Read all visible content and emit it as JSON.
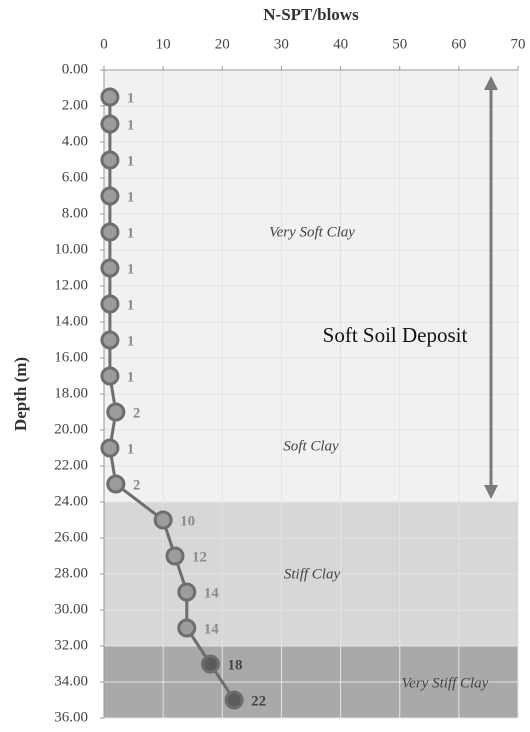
{
  "chart_data": {
    "type": "line",
    "title": "N-SPT/blows",
    "ylabel": "Depth (m)",
    "y": [
      1.5,
      3,
      5,
      7,
      9,
      11,
      13,
      15,
      17,
      19,
      21,
      23,
      25,
      27,
      29,
      31,
      33,
      35
    ],
    "series": [
      {
        "color": "#6e6e6e",
        "values": [
          1,
          1,
          1,
          1,
          1,
          1,
          1,
          1,
          1,
          2,
          1,
          2,
          10,
          12,
          14,
          14,
          18,
          22
        ]
      }
    ],
    "xlim": [
      0,
      70
    ],
    "xticks": [
      0,
      10,
      20,
      30,
      40,
      50,
      60,
      70
    ],
    "ylim": [
      0,
      36
    ],
    "y_inverted": true,
    "yticks": [
      {
        "value": 0,
        "label": "0.00"
      },
      {
        "value": 2,
        "label": "2.00"
      },
      {
        "value": 4,
        "label": "4.00"
      },
      {
        "value": 6,
        "label": "6.00"
      },
      {
        "value": 8,
        "label": "8.00"
      },
      {
        "value": 10,
        "label": "10.00"
      },
      {
        "value": 12,
        "label": "12.00"
      },
      {
        "value": 14,
        "label": "14.00"
      },
      {
        "value": 16,
        "label": "16.00"
      },
      {
        "value": 18,
        "label": "18.00"
      },
      {
        "value": 20,
        "label": "20.00"
      },
      {
        "value": 22,
        "label": "22.00"
      },
      {
        "value": 24,
        "label": "24.00"
      },
      {
        "value": 26,
        "label": "26.00"
      },
      {
        "value": 28,
        "label": "28.00"
      },
      {
        "value": 30,
        "label": "30.00"
      },
      {
        "value": 32,
        "label": "32.00"
      },
      {
        "value": 34,
        "label": "34.00"
      },
      {
        "value": 36,
        "label": "36.00"
      }
    ],
    "grid": true,
    "bands": [
      {
        "from": 24,
        "to": 32,
        "color": "#d7d7d7"
      },
      {
        "from": 32,
        "to": 36,
        "color": "#a9a9a9"
      }
    ],
    "annotations": [
      "Very Soft Clay",
      "Soft Clay",
      "Stiff Clay",
      "Very Stiff Clay",
      "Soft Soil Deposit"
    ]
  }
}
